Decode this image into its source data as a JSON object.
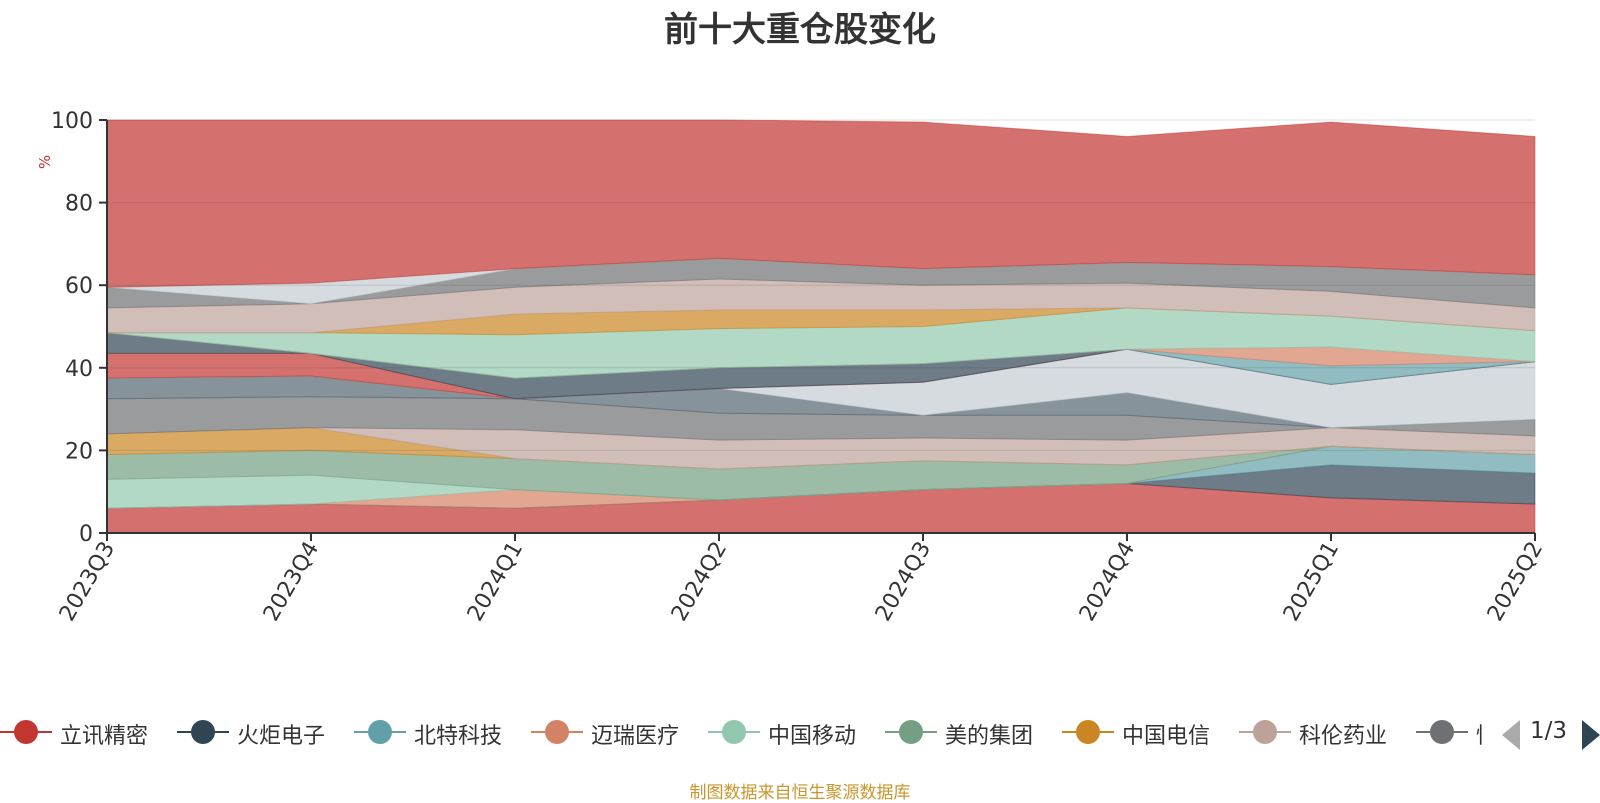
{
  "chart_data": {
    "type": "area",
    "title": "前十大重仓股变化",
    "ylabel": "%",
    "ylim": [
      0,
      100
    ],
    "yticks": [
      0,
      20,
      40,
      60,
      80,
      100
    ],
    "grid": true,
    "legend_position": "bottom",
    "categories": [
      "2023Q3",
      "2023Q4",
      "2024Q1",
      "2024Q2",
      "2024Q3",
      "2024Q4",
      "2025Q1",
      "2025Q2"
    ],
    "series": [
      {
        "name": "立讯精密",
        "color": "#c23531",
        "values": [
          6.0,
          7.0,
          6.0,
          8.0,
          10.5,
          12.0,
          8.5,
          7.0
        ]
      },
      {
        "name": "火炬电子",
        "color": "#2f4554",
        "values": [
          0.0,
          0.0,
          0.0,
          0.0,
          0.0,
          0.0,
          8.0,
          7.5
        ]
      },
      {
        "name": "北特科技",
        "color": "#61a0a8",
        "values": [
          0.0,
          0.0,
          0.0,
          0.0,
          0.0,
          0.0,
          4.5,
          4.5
        ]
      },
      {
        "name": "迈瑞医疗",
        "color": "#d48265",
        "values": [
          0.0,
          0.0,
          4.5,
          0.0,
          0.0,
          0.0,
          0.0,
          0.0
        ]
      },
      {
        "name": "中国移动",
        "color": "#91c7ae",
        "values": [
          7.0,
          7.0,
          0.0,
          0.0,
          0.0,
          0.0,
          0.0,
          0.0
        ]
      },
      {
        "name": "美的集团",
        "color": "#749f83",
        "values": [
          6.0,
          6.0,
          7.5,
          7.5,
          7.0,
          4.5,
          0.0,
          0.0
        ]
      },
      {
        "name": "中国电信",
        "color": "#ca8622",
        "values": [
          5.0,
          5.5,
          0.0,
          0.0,
          0.0,
          0.0,
          0.0,
          0.0
        ]
      },
      {
        "name": "科伦药业",
        "color": "#bda29a",
        "values": [
          0.0,
          0.0,
          7.0,
          7.0,
          5.5,
          6.0,
          4.5,
          4.5
        ]
      },
      {
        "name": "恒瑞医药",
        "color": "#6e7074",
        "values": [
          8.5,
          7.5,
          7.5,
          6.5,
          5.5,
          6.0,
          0.0,
          4.0
        ]
      },
      {
        "name": "",
        "color": "#546570",
        "values": [
          5.0,
          5.0,
          0.0,
          6.0,
          0.0,
          5.5,
          0.0,
          0.0
        ]
      },
      {
        "name": "",
        "color": "#c4ccd3",
        "values": [
          0.0,
          0.0,
          0.0,
          0.0,
          8.0,
          10.5,
          10.5,
          14.0
        ]
      },
      {
        "name": "",
        "color": "#c23531",
        "values": [
          6.0,
          5.5,
          0.0,
          0.0,
          0.0,
          0.0,
          0.0,
          0.0
        ]
      },
      {
        "name": "",
        "color": "#2f4554",
        "values": [
          5.0,
          0.0,
          5.0,
          5.0,
          4.5,
          0.0,
          0.0,
          0.0
        ]
      },
      {
        "name": "",
        "color": "#61a0a8",
        "values": [
          0.0,
          0.0,
          0.0,
          0.0,
          0.0,
          0.0,
          4.5,
          0.0
        ]
      },
      {
        "name": "",
        "color": "#d48265",
        "values": [
          0.0,
          0.0,
          0.0,
          0.0,
          0.0,
          0.0,
          4.5,
          0.0
        ]
      },
      {
        "name": "",
        "color": "#91c7ae",
        "values": [
          0.0,
          5.0,
          10.5,
          9.5,
          9.0,
          10.0,
          7.5,
          7.5
        ]
      },
      {
        "name": "",
        "color": "#ca8622",
        "values": [
          0.0,
          0.0,
          5.0,
          4.5,
          4.0,
          0.0,
          0.0,
          0.0
        ]
      },
      {
        "name": "",
        "color": "#bda29a",
        "values": [
          6.0,
          7.0,
          6.5,
          7.5,
          6.0,
          6.0,
          6.0,
          5.5
        ]
      },
      {
        "name": "",
        "color": "#6e7074",
        "values": [
          5.0,
          0.0,
          4.5,
          5.0,
          4.0,
          5.0,
          6.0,
          8.0
        ]
      },
      {
        "name": "",
        "color": "#c4ccd3",
        "values": [
          0.0,
          5.0,
          0.0,
          0.0,
          0.0,
          0.0,
          0.0,
          0.0
        ]
      },
      {
        "name": "",
        "color": "#c23531",
        "values": [
          40.5,
          39.5,
          36.0,
          33.5,
          35.5,
          30.5,
          35.0,
          33.5
        ]
      }
    ]
  },
  "legend": {
    "items": [
      {
        "label": "立讯精密",
        "color": "#c23531"
      },
      {
        "label": "火炬电子",
        "color": "#2f4554"
      },
      {
        "label": "北特科技",
        "color": "#61a0a8"
      },
      {
        "label": "迈瑞医疗",
        "color": "#d48265"
      },
      {
        "label": "中国移动",
        "color": "#91c7ae"
      },
      {
        "label": "美的集团",
        "color": "#749f83"
      },
      {
        "label": "中国电信",
        "color": "#ca8622"
      },
      {
        "label": "科伦药业",
        "color": "#bda29a"
      },
      {
        "label": "恒",
        "color": "#6e7074"
      }
    ],
    "page_text": "1/3"
  },
  "footer": {
    "source": "制图数据来自恒生聚源数据库"
  }
}
